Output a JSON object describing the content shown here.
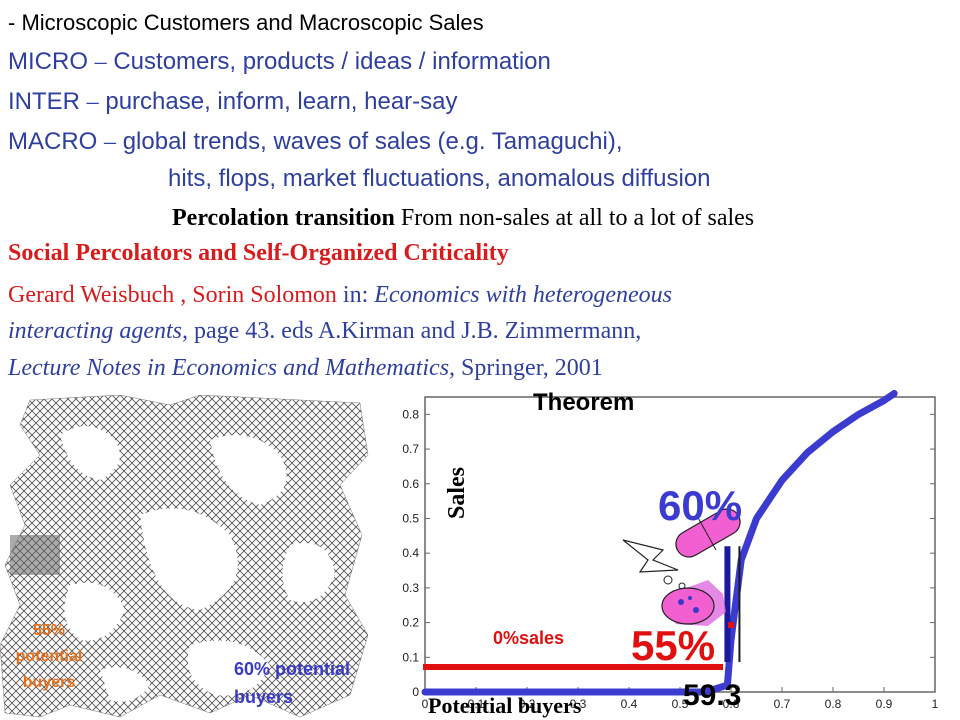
{
  "text": {
    "dash": "-",
    "line1": "Microscopic Customers and Macroscopic Sales",
    "micro_key": "MICRO",
    "en_dash": "–",
    "micro_text": "Customers, products / ideas / information",
    "inter_key": "INTER",
    "inter_text": "purchase, inform, learn, hear-say",
    "macro_key": "MACRO",
    "macro_text": "global trends, waves of sales (e.g. Tamaguchi),",
    "macro_text2": "hits, flops, market fluctuations, anomalous diffusion",
    "percolation_bold": "Percolation transition",
    "percolation_rest": "From non-sales at all to a lot of sales",
    "paper_title": "Social Percolators and Self-Organized Criticality",
    "authors": "Gerard Weisbuch , Sorin Solomon",
    "in": " in: ",
    "book_italic": "Economics with heterogeneous",
    "book_italic2": "interacting agents,",
    "pages": " page 43. eds A.Kirman and J.B. Zimmermann,",
    "series_italic": "Lecture Notes in Economics and Mathematics,",
    "publisher": " Springer, 2001"
  },
  "overlay": {
    "theorem": "Theorem",
    "sales": "Sales",
    "potential_buyers": "Potential buyers",
    "pct60": "60%",
    "pct55": "55%",
    "zero_sales": "0%sales",
    "value_593": "59.3",
    "lattice_label_1": "55%",
    "lattice_label_2": "potential",
    "lattice_label_3": "buyers",
    "buyers60_1": "60% potential",
    "buyers60_2": "buyers"
  },
  "colors": {
    "blue_text": "#2e3f9e",
    "red_text": "#d81c1c",
    "curve": "#3b3bd0",
    "red_bar": "#e01010",
    "lattice_label": "#e8701a",
    "buyers60": "#3a3ac8",
    "pill": "#f25fd0",
    "gear": "#e06be0"
  },
  "chart_data": {
    "type": "line",
    "xlim": [
      0,
      1
    ],
    "ylim": [
      0,
      0.85
    ],
    "x_ticks": [
      "0",
      "0.1",
      "0.2",
      "0.3",
      "0.4",
      "0.5",
      "0.6",
      "0.7",
      "0.8",
      "0.9",
      "1"
    ],
    "y_ticks": [
      "0",
      "0.1",
      "0.2",
      "0.3",
      "0.4",
      "0.5",
      "0.6",
      "0.7",
      "0.8"
    ],
    "xlabel": "Potential buyers",
    "ylabel": "Sales",
    "threshold_x": 0.593,
    "series": [
      {
        "x": [
          0,
          0.1,
          0.2,
          0.3,
          0.4,
          0.5,
          0.55,
          0.593,
          0.6,
          0.62,
          0.65,
          0.7,
          0.75,
          0.8,
          0.85,
          0.9,
          0.92
        ],
        "values": [
          0,
          0,
          0,
          0,
          0,
          0,
          0,
          0.02,
          0.15,
          0.38,
          0.5,
          0.61,
          0.69,
          0.75,
          0.8,
          0.84,
          0.86
        ]
      }
    ]
  }
}
